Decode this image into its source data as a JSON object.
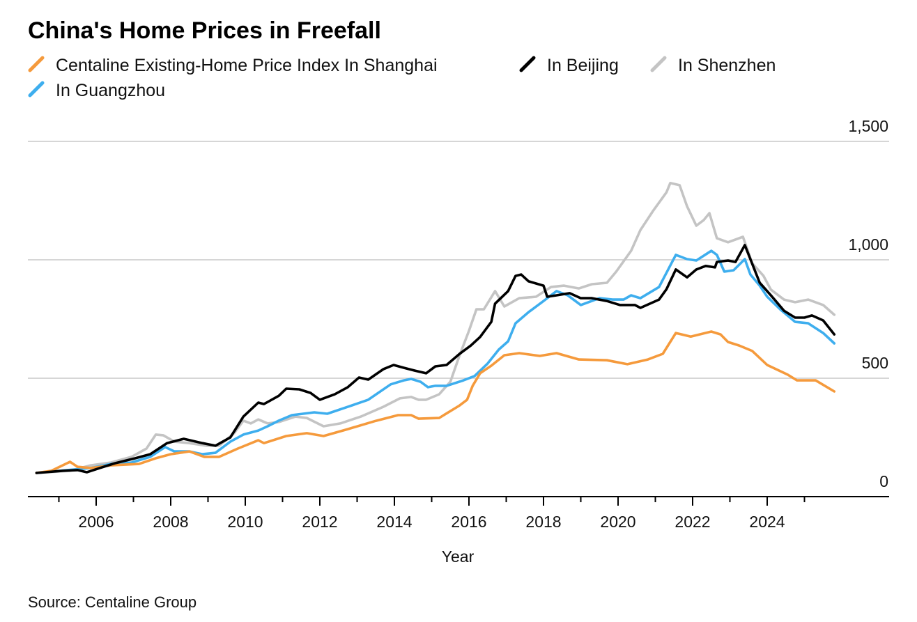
{
  "chart_data": {
    "type": "line",
    "title": "China's Home Prices in Freefall",
    "xlabel": "Year",
    "ylabel": "",
    "source": "Source: Centaline Group",
    "xlim": [
      2004,
      2027.1
    ],
    "ylim": [
      0,
      1500
    ],
    "x_ticks": [
      2006,
      2008,
      2010,
      2012,
      2014,
      2016,
      2018,
      2020,
      2022,
      2024
    ],
    "x_minor_ticks": [
      2005,
      2007,
      2009,
      2011,
      2013,
      2015,
      2017,
      2019,
      2021,
      2023,
      2025
    ],
    "y_ticks": [
      {
        "v": 0,
        "label": "0"
      },
      {
        "v": 500,
        "label": "500"
      },
      {
        "v": 1000,
        "label": "1,000"
      },
      {
        "v": 1500,
        "label": "1,500"
      }
    ],
    "grid": true,
    "legend_position": "top-left",
    "series": [
      {
        "name": "Centaline Existing-Home Price Index In Shanghai",
        "color": "#f59a3c",
        "points": [
          [
            2004.4,
            100
          ],
          [
            2004.8,
            109
          ],
          [
            2005.3,
            147
          ],
          [
            2005.5,
            126
          ],
          [
            2005.85,
            121
          ],
          [
            2006.4,
            132
          ],
          [
            2007.15,
            138
          ],
          [
            2007.6,
            162
          ],
          [
            2008,
            179
          ],
          [
            2008.5,
            191
          ],
          [
            2008.9,
            168
          ],
          [
            2009.3,
            168
          ],
          [
            2009.8,
            203
          ],
          [
            2010.35,
            238
          ],
          [
            2010.5,
            226
          ],
          [
            2011.1,
            256
          ],
          [
            2011.65,
            268
          ],
          [
            2012.1,
            256
          ],
          [
            2012.75,
            285
          ],
          [
            2013.5,
            320
          ],
          [
            2014.1,
            344
          ],
          [
            2014.45,
            344
          ],
          [
            2014.65,
            329
          ],
          [
            2015.2,
            332
          ],
          [
            2015.75,
            385
          ],
          [
            2015.95,
            409
          ],
          [
            2016.1,
            468
          ],
          [
            2016.3,
            521
          ],
          [
            2016.6,
            553
          ],
          [
            2016.95,
            597
          ],
          [
            2017.35,
            606
          ],
          [
            2017.9,
            594
          ],
          [
            2018.35,
            606
          ],
          [
            2018.95,
            579
          ],
          [
            2019.7,
            576
          ],
          [
            2020.25,
            559
          ],
          [
            2020.8,
            579
          ],
          [
            2021.2,
            603
          ],
          [
            2021.55,
            691
          ],
          [
            2021.95,
            676
          ],
          [
            2022.5,
            697
          ],
          [
            2022.75,
            685
          ],
          [
            2022.95,
            653
          ],
          [
            2023.25,
            638
          ],
          [
            2023.6,
            615
          ],
          [
            2024,
            556
          ],
          [
            2024.55,
            515
          ],
          [
            2024.8,
            491
          ],
          [
            2025.3,
            491
          ],
          [
            2025.8,
            444
          ]
        ]
      },
      {
        "name": "In Beijing",
        "color": "#000000",
        "points": [
          [
            2004.4,
            100
          ],
          [
            2005.1,
            109
          ],
          [
            2005.5,
            112
          ],
          [
            2005.75,
            103
          ],
          [
            2006.1,
            121
          ],
          [
            2006.5,
            141
          ],
          [
            2007.05,
            162
          ],
          [
            2007.45,
            179
          ],
          [
            2007.9,
            226
          ],
          [
            2008.35,
            244
          ],
          [
            2008.85,
            226
          ],
          [
            2009.2,
            215
          ],
          [
            2009.6,
            250
          ],
          [
            2009.95,
            338
          ],
          [
            2010.35,
            397
          ],
          [
            2010.5,
            391
          ],
          [
            2010.9,
            426
          ],
          [
            2011.1,
            456
          ],
          [
            2011.45,
            453
          ],
          [
            2011.75,
            438
          ],
          [
            2012.0,
            409
          ],
          [
            2012.4,
            432
          ],
          [
            2012.75,
            462
          ],
          [
            2013.05,
            503
          ],
          [
            2013.3,
            494
          ],
          [
            2013.7,
            538
          ],
          [
            2013.98,
            556
          ],
          [
            2014.25,
            544
          ],
          [
            2014.55,
            532
          ],
          [
            2014.85,
            521
          ],
          [
            2015.1,
            550
          ],
          [
            2015.4,
            556
          ],
          [
            2015.75,
            603
          ],
          [
            2016.05,
            638
          ],
          [
            2016.3,
            674
          ],
          [
            2016.6,
            738
          ],
          [
            2016.7,
            815
          ],
          [
            2017.05,
            868
          ],
          [
            2017.25,
            932
          ],
          [
            2017.4,
            938
          ],
          [
            2017.6,
            909
          ],
          [
            2018,
            891
          ],
          [
            2018.1,
            844
          ],
          [
            2018.35,
            850
          ],
          [
            2018.7,
            859
          ],
          [
            2019.0,
            838
          ],
          [
            2019.3,
            838
          ],
          [
            2019.7,
            826
          ],
          [
            2020.05,
            809
          ],
          [
            2020.45,
            809
          ],
          [
            2020.6,
            797
          ],
          [
            2021.1,
            832
          ],
          [
            2021.3,
            876
          ],
          [
            2021.55,
            959
          ],
          [
            2021.85,
            926
          ],
          [
            2022.1,
            959
          ],
          [
            2022.35,
            974
          ],
          [
            2022.6,
            968
          ],
          [
            2022.65,
            991
          ],
          [
            2022.95,
            997
          ],
          [
            2023.15,
            991
          ],
          [
            2023.4,
            1062
          ],
          [
            2023.8,
            903
          ],
          [
            2024.1,
            850
          ],
          [
            2024.45,
            785
          ],
          [
            2024.75,
            756
          ],
          [
            2025.0,
            756
          ],
          [
            2025.2,
            765
          ],
          [
            2025.5,
            744
          ],
          [
            2025.8,
            685
          ]
        ]
      },
      {
        "name": "In Shenzhen",
        "color": "#c4c4c4",
        "points": [
          [
            2004.4,
            100
          ],
          [
            2005.3,
            109
          ],
          [
            2005.85,
            132
          ],
          [
            2006.4,
            144
          ],
          [
            2006.95,
            168
          ],
          [
            2007.35,
            203
          ],
          [
            2007.6,
            262
          ],
          [
            2007.8,
            259
          ],
          [
            2008.1,
            232
          ],
          [
            2008.5,
            226
          ],
          [
            2008.95,
            215
          ],
          [
            2009.3,
            215
          ],
          [
            2009.7,
            268
          ],
          [
            2009.95,
            321
          ],
          [
            2010.15,
            309
          ],
          [
            2010.35,
            326
          ],
          [
            2010.6,
            309
          ],
          [
            2010.9,
            315
          ],
          [
            2011.35,
            338
          ],
          [
            2011.65,
            332
          ],
          [
            2012.1,
            297
          ],
          [
            2012.55,
            309
          ],
          [
            2013.1,
            338
          ],
          [
            2013.7,
            379
          ],
          [
            2014.15,
            415
          ],
          [
            2014.45,
            421
          ],
          [
            2014.65,
            409
          ],
          [
            2014.85,
            409
          ],
          [
            2015.2,
            432
          ],
          [
            2015.5,
            485
          ],
          [
            2015.75,
            597
          ],
          [
            2016.0,
            700
          ],
          [
            2016.2,
            791
          ],
          [
            2016.4,
            791
          ],
          [
            2016.7,
            868
          ],
          [
            2016.95,
            803
          ],
          [
            2017.35,
            838
          ],
          [
            2017.8,
            844
          ],
          [
            2018.2,
            885
          ],
          [
            2018.55,
            891
          ],
          [
            2018.95,
            879
          ],
          [
            2019.3,
            897
          ],
          [
            2019.7,
            903
          ],
          [
            2019.95,
            950
          ],
          [
            2020.35,
            1038
          ],
          [
            2020.6,
            1126
          ],
          [
            2020.95,
            1209
          ],
          [
            2021.3,
            1285
          ],
          [
            2021.4,
            1324
          ],
          [
            2021.65,
            1315
          ],
          [
            2021.85,
            1226
          ],
          [
            2022.1,
            1144
          ],
          [
            2022.3,
            1168
          ],
          [
            2022.45,
            1197
          ],
          [
            2022.65,
            1091
          ],
          [
            2022.95,
            1074
          ],
          [
            2023.35,
            1097
          ],
          [
            2023.6,
            985
          ],
          [
            2023.9,
            932
          ],
          [
            2024.1,
            874
          ],
          [
            2024.45,
            832
          ],
          [
            2024.75,
            821
          ],
          [
            2025.1,
            832
          ],
          [
            2025.5,
            809
          ],
          [
            2025.8,
            768
          ]
        ]
      },
      {
        "name": "In Guangzhou",
        "color": "#3eaeee",
        "points": [
          [
            2004.4,
            100
          ],
          [
            2005.85,
            121
          ],
          [
            2006.4,
            138
          ],
          [
            2006.95,
            144
          ],
          [
            2007.45,
            168
          ],
          [
            2007.85,
            209
          ],
          [
            2008.1,
            191
          ],
          [
            2008.5,
            191
          ],
          [
            2008.85,
            179
          ],
          [
            2009.2,
            185
          ],
          [
            2009.6,
            232
          ],
          [
            2009.95,
            262
          ],
          [
            2010.35,
            279
          ],
          [
            2010.6,
            297
          ],
          [
            2010.9,
            321
          ],
          [
            2011.25,
            344
          ],
          [
            2011.85,
            356
          ],
          [
            2012.2,
            350
          ],
          [
            2012.75,
            379
          ],
          [
            2013.3,
            409
          ],
          [
            2013.9,
            474
          ],
          [
            2014.25,
            491
          ],
          [
            2014.45,
            497
          ],
          [
            2014.7,
            485
          ],
          [
            2014.9,
            462
          ],
          [
            2015.1,
            468
          ],
          [
            2015.4,
            468
          ],
          [
            2015.85,
            491
          ],
          [
            2016.15,
            509
          ],
          [
            2016.5,
            562
          ],
          [
            2016.8,
            621
          ],
          [
            2017.05,
            656
          ],
          [
            2017.25,
            732
          ],
          [
            2017.6,
            779
          ],
          [
            2018,
            826
          ],
          [
            2018.35,
            868
          ],
          [
            2018.65,
            850
          ],
          [
            2019.0,
            809
          ],
          [
            2019.5,
            838
          ],
          [
            2019.85,
            832
          ],
          [
            2020.15,
            832
          ],
          [
            2020.35,
            850
          ],
          [
            2020.6,
            838
          ],
          [
            2021.1,
            885
          ],
          [
            2021.55,
            1021
          ],
          [
            2021.85,
            1003
          ],
          [
            2022.1,
            997
          ],
          [
            2022.5,
            1038
          ],
          [
            2022.65,
            1021
          ],
          [
            2022.85,
            950
          ],
          [
            2023.1,
            956
          ],
          [
            2023.4,
            1003
          ],
          [
            2023.55,
            938
          ],
          [
            2023.8,
            891
          ],
          [
            2024,
            844
          ],
          [
            2024.35,
            791
          ],
          [
            2024.75,
            738
          ],
          [
            2025.1,
            732
          ],
          [
            2025.5,
            691
          ],
          [
            2025.8,
            647
          ]
        ]
      }
    ]
  }
}
